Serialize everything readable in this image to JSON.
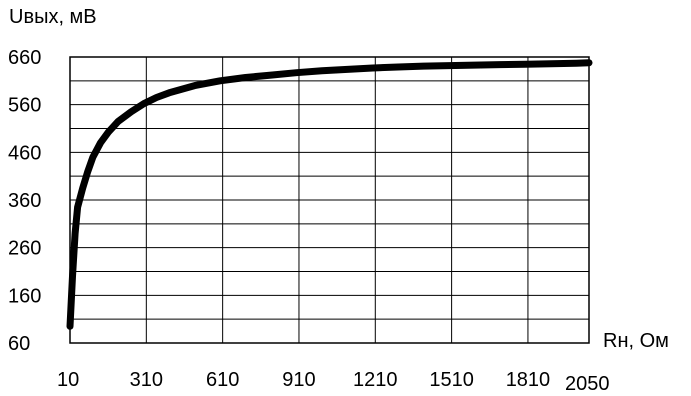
{
  "chart_data": {
    "type": "line",
    "xlabel": "Rн, Ом",
    "ylabel": "Uвых, мВ",
    "xlim": [
      10,
      2050
    ],
    "ylim": [
      60,
      660
    ],
    "x_ticks": [
      10,
      310,
      610,
      910,
      1210,
      1510,
      1810,
      2050
    ],
    "x_tick_labels": [
      "10",
      "310",
      "610",
      "910",
      "1210",
      "1510",
      "1810",
      "2050"
    ],
    "y_ticks": [
      60,
      160,
      260,
      360,
      460,
      560,
      660
    ],
    "y_tick_labels": [
      "60",
      "160",
      "260",
      "360",
      "460",
      "560",
      "660"
    ],
    "grid": true,
    "series": [
      {
        "points": [
          [
            10,
            95
          ],
          [
            20,
            200
          ],
          [
            30,
            290
          ],
          [
            40,
            345
          ],
          [
            60,
            385
          ],
          [
            80,
            420
          ],
          [
            100,
            450
          ],
          [
            130,
            480
          ],
          [
            160,
            502
          ],
          [
            200,
            525
          ],
          [
            250,
            545
          ],
          [
            300,
            562
          ],
          [
            350,
            575
          ],
          [
            400,
            585
          ],
          [
            500,
            600
          ],
          [
            600,
            610
          ],
          [
            700,
            617
          ],
          [
            800,
            622
          ],
          [
            900,
            627
          ],
          [
            1000,
            631
          ],
          [
            1100,
            634
          ],
          [
            1200,
            637
          ],
          [
            1300,
            639
          ],
          [
            1400,
            641
          ],
          [
            1500,
            642
          ],
          [
            1600,
            643
          ],
          [
            1700,
            644
          ],
          [
            1800,
            645
          ],
          [
            1900,
            646
          ],
          [
            2000,
            647
          ],
          [
            2050,
            648
          ]
        ]
      }
    ]
  }
}
